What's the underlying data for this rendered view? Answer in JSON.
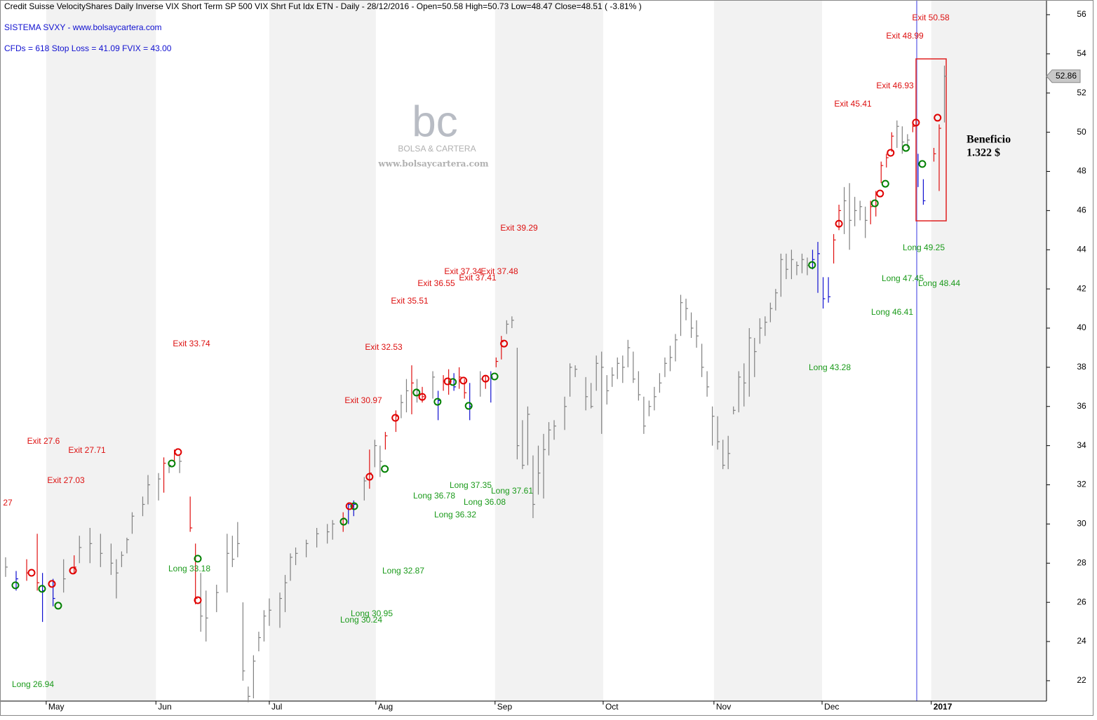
{
  "chart_data": {
    "type": "ohlc",
    "title": "Credit Suisse VelocityShares Daily Inverse VIX Short Term SP 500 VIX Shrt Fut Idx ETN - Daily - 28/12/2016 -   Open=50.58   High=50.73   Low=48.47   Close=48.51   ( -3.81% )",
    "subtitle": "SISTEMA SVXY  -  www.bolsaycartera.com",
    "info": "CFDs = 618     Stop Loss = 41.09     FVIX = 43.00",
    "watermark": [
      "bc",
      "BOLSA & CARTERA",
      "www.bolsaycartera.com"
    ],
    "profit": [
      "Beneficio",
      "1.322 $"
    ],
    "xlim": [
      -1.06,
      197.35
    ],
    "ylim": [
      20.96,
      56.75
    ],
    "xticks": [
      {
        "value": 7.7,
        "label": "May"
      },
      {
        "value": 28.5,
        "label": "Jun"
      },
      {
        "value": 50,
        "label": "Jul"
      },
      {
        "value": 70.2,
        "label": "Aug"
      },
      {
        "value": 92.8,
        "label": "Sep"
      },
      {
        "value": 113.3,
        "label": "Oct"
      },
      {
        "value": 134.3,
        "label": "Nov"
      },
      {
        "value": 154.8,
        "label": "Dec"
      },
      {
        "value": 175.5,
        "label": "2017"
      }
    ],
    "yticks": [
      22,
      24,
      26,
      28,
      30,
      32,
      34,
      36,
      38,
      40,
      42,
      44,
      46,
      48,
      50,
      52,
      54,
      56
    ],
    "bars": [
      [
        0,
        28.3,
        27.3,
        27.8,
        "#808080"
      ],
      [
        2,
        27.6,
        26.6,
        27.2,
        "#1010d0"
      ],
      [
        4,
        28.2,
        27.1,
        27.5,
        "#e01010"
      ],
      [
        6,
        29.5,
        26.6,
        27,
        "#e01010"
      ],
      [
        7,
        27.5,
        25,
        26.6,
        "#1010d0"
      ],
      [
        9,
        27.2,
        25.8,
        26.2,
        "#1010d0"
      ],
      [
        11,
        28.2,
        26.5,
        27.2,
        "#808080"
      ],
      [
        13,
        28.4,
        27.5,
        27.8,
        "#e01010"
      ],
      [
        14,
        29.4,
        28,
        28.8,
        "#808080"
      ],
      [
        16,
        29.8,
        28,
        29,
        "#808080"
      ],
      [
        18,
        29.5,
        27.8,
        28.5,
        "#808080"
      ],
      [
        20,
        29,
        27.4,
        28,
        "#808080"
      ],
      [
        21,
        28.2,
        26.2,
        27.5,
        "#808080"
      ],
      [
        22,
        28.6,
        27.8,
        28.4,
        "#808080"
      ],
      [
        23,
        29.3,
        28.5,
        29.2,
        "#808080"
      ],
      [
        24,
        30.6,
        29.5,
        30.4,
        "#808080"
      ],
      [
        26,
        31.4,
        30.4,
        31,
        "#808080"
      ],
      [
        27,
        32.5,
        31,
        32,
        "#808080"
      ],
      [
        29,
        32.6,
        31.2,
        32.3,
        "#808080"
      ],
      [
        30,
        33.4,
        31.6,
        33.1,
        "#e01010"
      ],
      [
        31,
        33.2,
        32.6,
        33,
        "#808080"
      ],
      [
        32,
        33.8,
        33.2,
        33.6,
        "#e01010"
      ],
      [
        33,
        33.5,
        32.6,
        33.2,
        "#808080"
      ],
      [
        35,
        31.4,
        29.6,
        29.8,
        "#e01010"
      ],
      [
        36,
        29,
        25.9,
        26.2,
        "#e01010"
      ],
      [
        37,
        27.5,
        24.5,
        25.3,
        "#808080"
      ],
      [
        38,
        26.6,
        24,
        25.2,
        "#808080"
      ],
      [
        40,
        26.9,
        25.5,
        26.5,
        "#808080"
      ],
      [
        42,
        29.5,
        26.5,
        28.5,
        "#808080"
      ],
      [
        43,
        29.4,
        27.8,
        28.2,
        "#808080"
      ],
      [
        44,
        30.1,
        28.3,
        29,
        "#808080"
      ],
      [
        45,
        26,
        22,
        22.5,
        "#808080"
      ],
      [
        46,
        21.7,
        20.9,
        21.2,
        "#808080"
      ],
      [
        47,
        23.3,
        21.1,
        23,
        "#808080"
      ],
      [
        48,
        24.5,
        23.5,
        24.2,
        "#808080"
      ],
      [
        49,
        25.6,
        24,
        25.3,
        "#808080"
      ],
      [
        50,
        26.2,
        24.8,
        25.6,
        "#808080"
      ],
      [
        52,
        26.5,
        24.7,
        26.2,
        "#808080"
      ],
      [
        53,
        27.4,
        25.5,
        27,
        "#808080"
      ],
      [
        54,
        28.5,
        27.1,
        28.3,
        "#808080"
      ],
      [
        55,
        28.8,
        27.9,
        28.5,
        "#808080"
      ],
      [
        57,
        29.2,
        28.3,
        29,
        "#808080"
      ],
      [
        59,
        29.8,
        28.8,
        29.5,
        "#808080"
      ],
      [
        61,
        30,
        29,
        29.6,
        "#808080"
      ],
      [
        62,
        30.2,
        29.2,
        30,
        "#808080"
      ],
      [
        64,
        30.6,
        29.6,
        30.3,
        "#e01010"
      ],
      [
        65,
        31.1,
        30,
        31,
        "#1010d0"
      ],
      [
        66,
        31.2,
        30.4,
        31,
        "#1010d0"
      ],
      [
        68,
        32.4,
        31.2,
        32.2,
        "#808080"
      ],
      [
        69,
        33.8,
        31.8,
        32.6,
        "#e01010"
      ],
      [
        70,
        34.3,
        32.9,
        34,
        "#808080"
      ],
      [
        71,
        34,
        32.4,
        33.2,
        "#808080"
      ],
      [
        72,
        34.7,
        33.8,
        34.5,
        "#e01010"
      ],
      [
        74,
        35.8,
        34.7,
        35.5,
        "#e01010"
      ],
      [
        75,
        36.6,
        35.4,
        36.2,
        "#808080"
      ],
      [
        76,
        37.4,
        35.7,
        36.8,
        "#808080"
      ],
      [
        77,
        38.1,
        35.6,
        37.2,
        "#e01010"
      ],
      [
        78,
        37.4,
        36.2,
        36.8,
        "#808080"
      ],
      [
        79,
        37,
        36.2,
        36.5,
        "#e01010"
      ],
      [
        81,
        37.8,
        36.4,
        37.5,
        "#808080"
      ],
      [
        82,
        36.8,
        35.3,
        36.3,
        "#1010d0"
      ],
      [
        83,
        37.6,
        36.8,
        37.3,
        "#e01010"
      ],
      [
        84,
        37.9,
        36.6,
        37.4,
        "#e01010"
      ],
      [
        85,
        37.7,
        36.8,
        37,
        "#1010d0"
      ],
      [
        86,
        38,
        36.9,
        37.5,
        "#e01010"
      ],
      [
        87,
        37.4,
        36.4,
        36.7,
        "#e01010"
      ],
      [
        88,
        37.2,
        35.3,
        36,
        "#1010d0"
      ],
      [
        90,
        37.8,
        36.5,
        37.4,
        "#808080"
      ],
      [
        91,
        37.6,
        36.9,
        37.3,
        "#e01010"
      ],
      [
        92,
        37.8,
        36.2,
        37.5,
        "#1010d0"
      ],
      [
        93,
        38.5,
        38,
        38.3,
        "#e01010"
      ],
      [
        94,
        39.6,
        38.4,
        39.3,
        "#e01010"
      ],
      [
        95,
        40.4,
        39.7,
        40.2,
        "#808080"
      ],
      [
        96,
        40.6,
        40,
        40.4,
        "#808080"
      ],
      [
        97,
        39,
        33.3,
        34,
        "#808080"
      ],
      [
        98,
        35.3,
        32.8,
        33,
        "#808080"
      ],
      [
        99,
        36,
        33,
        35.6,
        "#808080"
      ],
      [
        100,
        33.5,
        30.3,
        31,
        "#808080"
      ],
      [
        101,
        34,
        31.5,
        32.6,
        "#808080"
      ],
      [
        102,
        34.6,
        31.3,
        33.8,
        "#808080"
      ],
      [
        103,
        35.2,
        33.5,
        34.8,
        "#808080"
      ],
      [
        104,
        35.3,
        34.3,
        35,
        "#808080"
      ],
      [
        106,
        36.5,
        34.8,
        36,
        "#808080"
      ],
      [
        107,
        38.2,
        36.5,
        38,
        "#808080"
      ],
      [
        108,
        38.1,
        37.5,
        37.9,
        "#808080"
      ],
      [
        110,
        37.5,
        35.8,
        36.5,
        "#808080"
      ],
      [
        111,
        37.2,
        35.9,
        36,
        "#808080"
      ],
      [
        112,
        38.6,
        36.8,
        38.2,
        "#808080"
      ],
      [
        113,
        38.8,
        34.6,
        38,
        "#808080"
      ],
      [
        114,
        37.6,
        36.1,
        36.8,
        "#808080"
      ],
      [
        115,
        38,
        37,
        37.6,
        "#808080"
      ],
      [
        116,
        38.5,
        37.4,
        38.2,
        "#808080"
      ],
      [
        117,
        38.6,
        37.2,
        38,
        "#808080"
      ],
      [
        118,
        39.4,
        38,
        39,
        "#808080"
      ],
      [
        119,
        38.8,
        37.2,
        37.4,
        "#808080"
      ],
      [
        120,
        37.8,
        36.3,
        36.6,
        "#808080"
      ],
      [
        121,
        36.5,
        34.6,
        35,
        "#808080"
      ],
      [
        122,
        36.3,
        35.5,
        36,
        "#808080"
      ],
      [
        123,
        37,
        35.8,
        36.5,
        "#808080"
      ],
      [
        124,
        37.7,
        36.7,
        37.2,
        "#808080"
      ],
      [
        125,
        38.5,
        37.5,
        38.2,
        "#808080"
      ],
      [
        126,
        39.1,
        37.8,
        38.5,
        "#808080"
      ],
      [
        127,
        39.7,
        38.3,
        39.4,
        "#808080"
      ],
      [
        128,
        41.7,
        39.6,
        41.3,
        "#808080"
      ],
      [
        129,
        41.5,
        40.4,
        41,
        "#808080"
      ],
      [
        130,
        40.8,
        39.5,
        40,
        "#808080"
      ],
      [
        131,
        40.4,
        39,
        39.6,
        "#808080"
      ],
      [
        132,
        39.2,
        37.5,
        38,
        "#808080"
      ],
      [
        133,
        37.8,
        36.5,
        37,
        "#808080"
      ],
      [
        134,
        36,
        34,
        35.5,
        "#808080"
      ],
      [
        135,
        35.5,
        33.8,
        34.2,
        "#808080"
      ],
      [
        136,
        34.3,
        32.8,
        33,
        "#808080"
      ],
      [
        137,
        34.5,
        32.8,
        33.6,
        "#808080"
      ],
      [
        138,
        36,
        35.6,
        35.8,
        "#808080"
      ],
      [
        139,
        37.8,
        35.7,
        37.5,
        "#808080"
      ],
      [
        140,
        38.2,
        36,
        37.2,
        "#808080"
      ],
      [
        141,
        40,
        36.5,
        39.5,
        "#808080"
      ],
      [
        142,
        39.5,
        37.5,
        38.8,
        "#808080"
      ],
      [
        143,
        40.5,
        39.2,
        40,
        "#808080"
      ],
      [
        144,
        40.6,
        39.6,
        40.3,
        "#808080"
      ],
      [
        145,
        41.3,
        40.3,
        41,
        "#808080"
      ],
      [
        146,
        42,
        40.9,
        41.8,
        "#808080"
      ],
      [
        147,
        43.8,
        41.6,
        43.5,
        "#808080"
      ],
      [
        148,
        43.8,
        42.5,
        43,
        "#808080"
      ],
      [
        149,
        44,
        42.5,
        43.5,
        "#808080"
      ],
      [
        150,
        43.4,
        42.7,
        43.2,
        "#808080"
      ],
      [
        151,
        43.8,
        42.8,
        43.5,
        "#808080"
      ],
      [
        152,
        43.6,
        42.7,
        43.2,
        "#808080"
      ],
      [
        153,
        44,
        43,
        43.5,
        "#1010d0"
      ],
      [
        154,
        44.4,
        41.8,
        43.8,
        "#1010d0"
      ],
      [
        155,
        42.6,
        41,
        41.5,
        "#1010d0"
      ],
      [
        156,
        42.6,
        41.3,
        41.6,
        "#1010d0"
      ],
      [
        157,
        44.8,
        43.3,
        44.5,
        "#e01010"
      ],
      [
        158,
        46.3,
        45,
        46,
        "#e01010"
      ],
      [
        159,
        47.2,
        44.8,
        46.5,
        "#808080"
      ],
      [
        160,
        47.4,
        44,
        45.5,
        "#808080"
      ],
      [
        161,
        46.7,
        45.2,
        46,
        "#808080"
      ],
      [
        162,
        46.5,
        45.5,
        46.2,
        "#808080"
      ],
      [
        163,
        46.2,
        44.6,
        45.5,
        "#808080"
      ],
      [
        164,
        46.5,
        45.3,
        46.2,
        "#e01010"
      ],
      [
        165,
        47,
        45.7,
        46.8,
        "#e01010"
      ],
      [
        166,
        48.5,
        47.4,
        48.3,
        "#e01010"
      ],
      [
        167,
        48.9,
        48.2,
        48.7,
        "#e01010"
      ],
      [
        168,
        50,
        49,
        49.8,
        "#e01010"
      ],
      [
        169,
        50.6,
        49.2,
        50.3,
        "#808080"
      ],
      [
        170,
        50.3,
        48.9,
        49.5,
        "#808080"
      ],
      [
        171,
        49.9,
        49.2,
        49.6,
        "#808080"
      ],
      [
        172,
        50.5,
        50,
        50.3,
        "#e01010"
      ],
      [
        173,
        48.9,
        47.2,
        48.4,
        "#1010d0"
      ],
      [
        174,
        47.6,
        46.3,
        46.5,
        "#1010d0"
      ],
      [
        176,
        49.2,
        48.5,
        48.9,
        "#e01010"
      ],
      [
        177,
        50.4,
        47,
        50.2,
        "#e01010"
      ],
      [
        178,
        53.4,
        50.5,
        52.86,
        "#808080"
      ]
    ],
    "long_signals": {
      "color": "#008000",
      "x": [
        1.86,
        6.91,
        9.97,
        31.5,
        36.44,
        64.1,
        66.1,
        71.9,
        77.9,
        81.9,
        84.8,
        87.8,
        92.7,
        152.9,
        164.8,
        166.8,
        170.7,
        173.8
      ],
      "values": [
        26.87,
        26.69,
        25.83,
        33.09,
        28.23,
        30.12,
        30.91,
        32.81,
        36.71,
        36.24,
        37.25,
        36.03,
        37.53,
        43.22,
        46.37,
        47.37,
        49.2,
        48.38
      ]
    },
    "exit_signals": {
      "color": "#e00000",
      "x": [
        4.92,
        8.78,
        12.77,
        32.7,
        36.44,
        65.2,
        69,
        73.9,
        79,
        83.8,
        86.8,
        91,
        94.5,
        158,
        165.8,
        167.8,
        172.6,
        176.7
      ],
      "values": [
        27.51,
        26.94,
        27.62,
        33.67,
        26.11,
        30.91,
        32.41,
        35.42,
        36.49,
        37.28,
        37.32,
        37.42,
        39.21,
        45.33,
        46.87,
        48.95,
        50.49,
        50.74
      ]
    },
    "exit_labels": {
      "color": "#dd1111",
      "texts": [
        "Exit 27.6",
        "Exit 27.71",
        "Exit 27.03",
        "27",
        "Exit 33.74",
        "Exit 30.97",
        "Exit 32.53",
        "Exit 35.51",
        "Exit 36.55",
        "Exit 37.34",
        "Exit 37.41",
        "Exit 37.48",
        "Exit 39.29",
        "Exit 45.41",
        "Exit 46.93",
        "Exit 48.99",
        "Exit 50.58"
      ]
    },
    "long_labels": {
      "color": "#1a9a1a",
      "texts": [
        "Long 26.94",
        "Long 33.18",
        "Long 30.24",
        "Long 30.95",
        "Long 32.87",
        "Long 36.78",
        "Long 36.32",
        "Long 37.35",
        "Long 36.08",
        "Long 37.61",
        "Long 43.28",
        "Long 46.41",
        "Long 47.45",
        "Long 49.25",
        "Long 48.44"
      ]
    }
  }
}
